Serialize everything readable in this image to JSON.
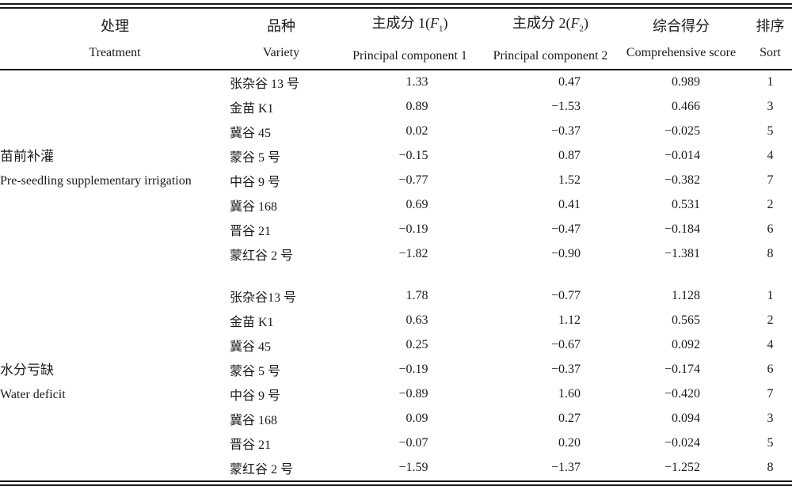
{
  "header": {
    "treatment": {
      "zh": "处理",
      "en": "Treatment"
    },
    "variety": {
      "zh": "品种",
      "en": "Variety"
    },
    "pc1": {
      "zh_pre": "主成分 1(",
      "symbol": "F",
      "subscript": "1",
      "zh_post": ")",
      "en": "Principal component 1"
    },
    "pc2": {
      "zh_pre": "主成分 2(",
      "symbol": "F",
      "subscript": "2",
      "zh_post": ")",
      "en": "Principal component 2"
    },
    "score": {
      "zh": "综合得分",
      "en": "Comprehensive score"
    },
    "sort": {
      "zh": "排序",
      "en": "Sort"
    }
  },
  "groups": [
    {
      "treatment_zh": "苗前补灌",
      "treatment_en": "Pre-seedling supplementary irrigation",
      "rows": [
        {
          "variety": "张杂谷 13 号",
          "pc1": "1.33",
          "pc2": "0.47",
          "score": "0.989",
          "sort": "1"
        },
        {
          "variety": "金苗 K1",
          "pc1": "0.89",
          "pc2": "−1.53",
          "score": "0.466",
          "sort": "3"
        },
        {
          "variety": "冀谷 45",
          "pc1": "0.02",
          "pc2": "−0.37",
          "score": "−0.025",
          "sort": "5"
        },
        {
          "variety": "蒙谷 5 号",
          "pc1": "−0.15",
          "pc2": "0.87",
          "score": "−0.014",
          "sort": "4"
        },
        {
          "variety": "中谷 9 号",
          "pc1": "−0.77",
          "pc2": "1.52",
          "score": "−0.382",
          "sort": "7"
        },
        {
          "variety": "冀谷 168",
          "pc1": "0.69",
          "pc2": "0.41",
          "score": "0.531",
          "sort": "2"
        },
        {
          "variety": "晋谷 21",
          "pc1": "−0.19",
          "pc2": "−0.47",
          "score": "−0.184",
          "sort": "6"
        },
        {
          "variety": "蒙红谷 2 号",
          "pc1": "−1.82",
          "pc2": "−0.90",
          "score": "−1.381",
          "sort": "8"
        }
      ]
    },
    {
      "treatment_zh": "水分亏缺",
      "treatment_en": "Water deficit",
      "rows": [
        {
          "variety": "张杂谷13 号",
          "pc1": "1.78",
          "pc2": "−0.77",
          "score": "1.128",
          "sort": "1"
        },
        {
          "variety": "金苗 K1",
          "pc1": "0.63",
          "pc2": "1.12",
          "score": "0.565",
          "sort": "2"
        },
        {
          "variety": "冀谷 45",
          "pc1": "0.25",
          "pc2": "−0.67",
          "score": "0.092",
          "sort": "4"
        },
        {
          "variety": "蒙谷 5 号",
          "pc1": "−0.19",
          "pc2": "−0.37",
          "score": "−0.174",
          "sort": "6"
        },
        {
          "variety": "中谷 9 号",
          "pc1": "−0.89",
          "pc2": "1.60",
          "score": "−0.420",
          "sort": "7"
        },
        {
          "variety": "冀谷 168",
          "pc1": "0.09",
          "pc2": "0.27",
          "score": "0.094",
          "sort": "3"
        },
        {
          "variety": "晋谷 21",
          "pc1": "−0.07",
          "pc2": "0.20",
          "score": "−0.024",
          "sort": "5"
        },
        {
          "variety": "蒙红谷 2 号",
          "pc1": "−1.59",
          "pc2": "−1.37",
          "score": "−1.252",
          "sort": "8"
        }
      ]
    }
  ]
}
